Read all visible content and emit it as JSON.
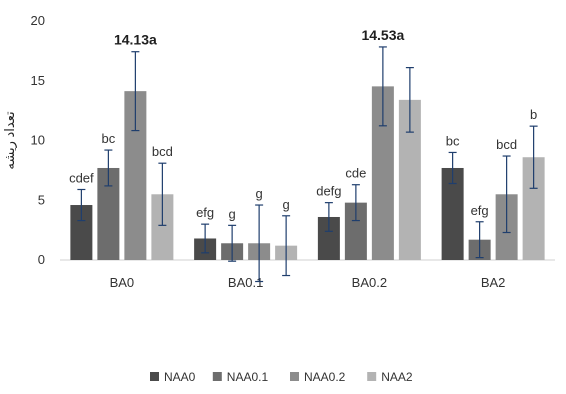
{
  "chart_data": {
    "type": "bar",
    "title": "",
    "xlabel": "",
    "ylabel": "تعداد ریشه",
    "ylim": [
      0,
      20
    ],
    "yticks": [
      0,
      5,
      10,
      15,
      20
    ],
    "grid": false,
    "legend_position": "bottom",
    "categories": [
      "BA0",
      "BA0.1",
      "BA0.2",
      "BA2"
    ],
    "series": [
      {
        "name": "NAA0",
        "color": "#4a4a4a",
        "values": [
          4.6,
          1.8,
          3.6,
          7.7
        ],
        "errors": [
          1.3,
          1.2,
          1.2,
          1.3
        ],
        "labels": [
          "cdef",
          "efg",
          "defg",
          "bc"
        ]
      },
      {
        "name": "NAA0.1",
        "color": "#6d6d6d",
        "values": [
          7.7,
          1.4,
          4.8,
          1.7
        ],
        "errors": [
          1.5,
          1.5,
          1.5,
          1.5
        ],
        "labels": [
          "bc",
          "g",
          "cde",
          "efg"
        ]
      },
      {
        "name": "NAA0.2",
        "color": "#8c8c8c",
        "values": [
          14.13,
          1.4,
          14.53,
          5.5
        ],
        "errors": [
          3.3,
          3.2,
          3.3,
          3.2
        ],
        "labels": [
          "14.13a",
          "g",
          "14.53a",
          "bcd"
        ]
      },
      {
        "name": "NAA2",
        "color": "#b3b3b3",
        "values": [
          5.5,
          1.2,
          13.4,
          8.6
        ],
        "errors": [
          2.6,
          2.5,
          2.7,
          2.6
        ],
        "labels": [
          "bcd",
          "g",
          "",
          "b"
        ]
      }
    ]
  }
}
